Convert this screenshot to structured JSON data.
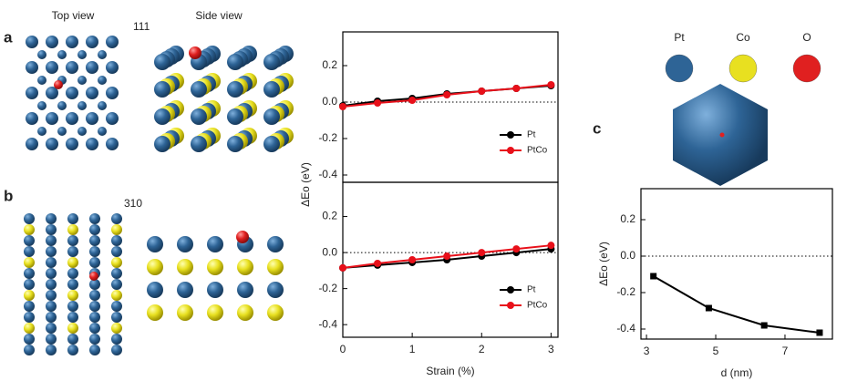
{
  "panels": {
    "a": "a",
    "b": "b",
    "c": "c",
    "top_view": "Top view",
    "side_view": "Side view",
    "facet_a": "111",
    "facet_b": "310"
  },
  "elements": [
    {
      "name": "Pt",
      "color": "#2e6496"
    },
    {
      "name": "Co",
      "color": "#e8e020"
    },
    {
      "name": "O",
      "color": "#e02020"
    }
  ],
  "chart_data": [
    {
      "type": "line",
      "x": [
        0,
        0.5,
        1,
        1.5,
        2,
        2.5,
        3
      ],
      "xlim": [
        0,
        3.1
      ],
      "ylim": [
        -0.44,
        0.385
      ],
      "yticks": [
        0.2,
        {
          "value": 0,
          "label": "0.0"
        },
        -0.2,
        -0.4
      ],
      "zero_line": true,
      "legend": "lower right",
      "series": [
        {
          "name": "Pt",
          "color": "#000000",
          "marker": "circle",
          "values": [
            -0.02,
            0.005,
            0.02,
            0.045,
            0.06,
            0.075,
            0.09
          ]
        },
        {
          "name": "PtCo",
          "color": "#e8101a",
          "marker": "circle",
          "values": [
            -0.025,
            -0.005,
            0.01,
            0.04,
            0.06,
            0.075,
            0.095
          ]
        }
      ]
    },
    {
      "type": "line",
      "x": [
        0,
        0.5,
        1,
        1.5,
        2,
        2.5,
        3
      ],
      "xlim": [
        0,
        3.1
      ],
      "ylim": [
        -0.47,
        0.39
      ],
      "xticks": [
        0,
        1,
        2,
        3
      ],
      "yticks": [
        0.2,
        {
          "value": 0,
          "label": "0.0"
        },
        -0.2,
        -0.4
      ],
      "zero_line": true,
      "legend": "lower right",
      "xlabel": "Strain (%)",
      "ylabel": "ΔEo (eV)",
      "series": [
        {
          "name": "Pt",
          "color": "#000000",
          "marker": "circle",
          "values": [
            -0.085,
            -0.07,
            -0.055,
            -0.04,
            -0.02,
            0,
            0.02
          ]
        },
        {
          "name": "PtCo",
          "color": "#e8101a",
          "marker": "circle",
          "values": [
            -0.085,
            -0.06,
            -0.04,
            -0.02,
            0,
            0.02,
            0.04
          ]
        }
      ]
    },
    {
      "type": "line",
      "x": [
        3.2,
        4.8,
        6.4,
        8.0
      ],
      "xlim": [
        2.84,
        8.37
      ],
      "ylim": [
        -0.455,
        0.37
      ],
      "xticks": [
        3,
        5,
        7
      ],
      "yticks": [
        0.2,
        {
          "value": 0,
          "label": "0.0"
        },
        -0.2,
        -0.4
      ],
      "zero_line": true,
      "xlabel": "d (nm)",
      "ylabel": "ΔEo (eV)",
      "series": [
        {
          "color": "#000000",
          "marker": "square",
          "values": [
            -0.11,
            -0.285,
            -0.38,
            -0.42
          ]
        }
      ]
    }
  ]
}
